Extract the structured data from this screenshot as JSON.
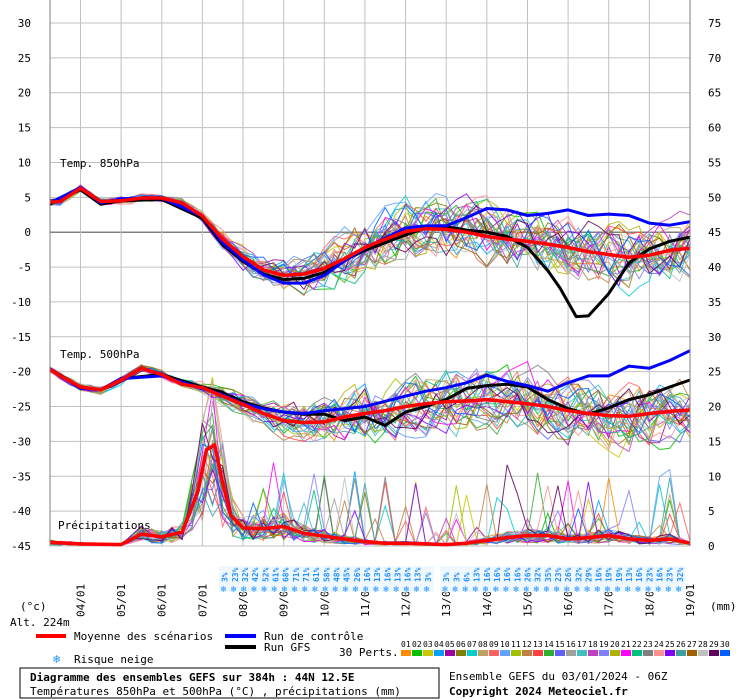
{
  "chart_data": {
    "type": "line",
    "left_axis_ticks": [
      30,
      25,
      20,
      15,
      10,
      5,
      0,
      -5,
      -10,
      -15,
      -20,
      -25,
      -30,
      -35,
      -40,
      -45
    ],
    "right_axis_ticks": [
      75,
      70,
      65,
      60,
      55,
      50,
      45,
      40,
      35,
      30,
      25,
      20,
      15,
      10,
      5,
      0
    ],
    "left_ylim": [
      -45,
      30
    ],
    "right_ylim": [
      0,
      75
    ],
    "left_unit": "(°c)",
    "right_unit": "(mm)",
    "altitude": "Alt. 224m",
    "x_labels": [
      "04/01",
      "05/01",
      "06/01",
      "07/01",
      "08/01",
      "09/01",
      "10/01",
      "11/01",
      "12/01",
      "13/01",
      "14/01",
      "15/01",
      "16/01",
      "17/01",
      "18/01",
      "19/01"
    ],
    "x_domain_days": [
      3.25,
      19
    ],
    "panel_labels": {
      "t850": "Temp. 850hPa",
      "t500": "Temp. 500hPa",
      "precip": "Précipitations"
    },
    "series": [
      {
        "name": "Moyenne des scénarios",
        "color": "#FF0000",
        "role": "t850_mean",
        "x": [
          3.25,
          3.5,
          4,
          4.5,
          5,
          5.5,
          6,
          6.5,
          7,
          7.5,
          8,
          8.5,
          9,
          9.5,
          10,
          10.5,
          11,
          11.5,
          12,
          12.5,
          13,
          13.5,
          14,
          14.5,
          15,
          15.5,
          16,
          16.5,
          17,
          17.5,
          18,
          18.5,
          19
        ],
        "y": [
          4.3,
          4.4,
          6.3,
          4.4,
          4.5,
          4.9,
          4.9,
          4.2,
          2.3,
          -1.0,
          -3.5,
          -5.4,
          -6.2,
          -6.0,
          -5.2,
          -3.8,
          -2.2,
          -1.0,
          0.1,
          0.5,
          0.4,
          0.0,
          -0.6,
          -1.0,
          -1.3,
          -1.7,
          -2.2,
          -2.8,
          -3.2,
          -3.6,
          -3.3,
          -2.6,
          -2.3
        ]
      },
      {
        "name": "Run de contrôle",
        "color": "#0000FF",
        "role": "t850_control",
        "x": [
          3.25,
          4,
          4.5,
          5,
          6,
          7,
          7.5,
          8,
          8.5,
          9,
          9.5,
          10,
          10.5,
          11,
          12,
          12.5,
          13,
          13.5,
          14,
          14.5,
          15,
          15.5,
          16,
          16.5,
          17,
          17.5,
          18,
          18.5,
          19
        ],
        "y": [
          4.2,
          6.4,
          4.2,
          4.8,
          4.9,
          2.3,
          -1.5,
          -4.0,
          -6.1,
          -7.3,
          -7.3,
          -6.2,
          -4.1,
          -2.3,
          0.6,
          0.9,
          0.9,
          2.1,
          3.4,
          3.2,
          2.4,
          2.7,
          3.2,
          2.4,
          2.6,
          2.4,
          1.3,
          1.0,
          1.5
        ]
      },
      {
        "name": "Run GFS",
        "color": "#000000",
        "role": "t850_gfs",
        "x": [
          3.25,
          4,
          4.5,
          5,
          6,
          7,
          7.5,
          8,
          8.5,
          9,
          9.5,
          10,
          10.5,
          11,
          12,
          12.5,
          13,
          13.5,
          14,
          14.5,
          15,
          15.5,
          15.8,
          16.2,
          16.5,
          16.8,
          17,
          17.5,
          18,
          18.5,
          19
        ],
        "y": [
          4.0,
          6.1,
          4.0,
          4.5,
          4.7,
          2.0,
          -1.8,
          -4.2,
          -6.0,
          -6.8,
          -6.6,
          -5.8,
          -4.0,
          -2.6,
          -0.4,
          0.6,
          0.8,
          0.3,
          0.0,
          -0.6,
          -2.2,
          -5.5,
          -8.0,
          -12.1,
          -12.0,
          -10.1,
          -8.8,
          -4.4,
          -2.4,
          -1.3,
          -0.7
        ]
      },
      {
        "name": "Moyenne des scénarios",
        "color": "#FF0000",
        "role": "t500_mean",
        "x": [
          3.25,
          3.5,
          4,
          4.5,
          5,
          5.5,
          6,
          6.5,
          7,
          7.5,
          8,
          8.5,
          9,
          9.5,
          10,
          10.5,
          11,
          11.5,
          12,
          12.5,
          13,
          13.5,
          14,
          14.5,
          15,
          15.5,
          16,
          16.5,
          17,
          17.5,
          18,
          18.5,
          19
        ],
        "y": [
          -19.7,
          -20.6,
          -22.2,
          -22.6,
          -21.2,
          -19.5,
          -20.4,
          -21.8,
          -22.3,
          -23.5,
          -24.7,
          -26.0,
          -27.0,
          -27.3,
          -27.2,
          -26.5,
          -26.0,
          -25.6,
          -25.0,
          -24.6,
          -24.3,
          -24.2,
          -24.0,
          -24.3,
          -24.6,
          -25.0,
          -25.6,
          -26.0,
          -26.3,
          -26.4,
          -26.0,
          -25.7,
          -25.5
        ]
      },
      {
        "name": "Run de contrôle",
        "color": "#0000FF",
        "role": "t500_control",
        "x": [
          3.25,
          4,
          4.5,
          5,
          6,
          7,
          7.5,
          8,
          8.5,
          9,
          9.5,
          10,
          11,
          12,
          12.5,
          13,
          13.5,
          14,
          14.5,
          15,
          15.5,
          16,
          16.5,
          17,
          17.5,
          18,
          18.5,
          19
        ],
        "y": [
          -19.6,
          -22.4,
          -22.6,
          -21.0,
          -20.6,
          -22.4,
          -23.3,
          -24.6,
          -25.3,
          -25.8,
          -26.0,
          -25.6,
          -25.0,
          -23.5,
          -22.8,
          -22.3,
          -21.6,
          -20.5,
          -21.4,
          -22.0,
          -22.8,
          -21.6,
          -20.6,
          -20.6,
          -19.2,
          -19.5,
          -18.4,
          -17.0
        ]
      },
      {
        "name": "Run GFS",
        "color": "#000000",
        "role": "t500_gfs",
        "x": [
          3.25,
          4,
          4.5,
          5,
          6,
          7,
          7.5,
          8,
          8.5,
          9,
          9.5,
          10,
          10.5,
          11,
          11.5,
          12,
          12.5,
          13,
          13.5,
          14,
          14.5,
          15,
          15.5,
          16,
          16.5,
          17,
          17.5,
          18,
          18.5,
          19
        ],
        "y": [
          -19.6,
          -22.3,
          -22.6,
          -21.0,
          -20.4,
          -22.2,
          -23.0,
          -24.3,
          -25.2,
          -25.8,
          -26.1,
          -26.1,
          -27.0,
          -26.5,
          -27.7,
          -25.8,
          -25.0,
          -24.0,
          -22.4,
          -22.0,
          -21.8,
          -22.2,
          -24.0,
          -25.3,
          -26.1,
          -25.2,
          -24.0,
          -23.3,
          -22.2,
          -21.2
        ]
      },
      {
        "name": "Moyenne des scénarios",
        "color": "#FF0000",
        "role": "precip_mean",
        "x": [
          3.25,
          4,
          5,
          5.5,
          6,
          6.5,
          6.9,
          7.1,
          7.3,
          7.5,
          7.7,
          8,
          8.5,
          9,
          9.5,
          10,
          10.5,
          11,
          11.5,
          12,
          12.5,
          13,
          13.5,
          14,
          14.5,
          15,
          15.5,
          16,
          16.5,
          17,
          17.5,
          18,
          18.5,
          19
        ],
        "y": [
          0.5,
          0.3,
          0.2,
          1.7,
          1.3,
          2.0,
          8.0,
          13.8,
          14.5,
          9.0,
          4.4,
          2.6,
          2.5,
          2.8,
          1.8,
          1.4,
          1.0,
          0.6,
          0.4,
          0.4,
          0.3,
          0.2,
          0.4,
          0.8,
          1.2,
          1.5,
          1.5,
          1.0,
          1.2,
          1.5,
          1.0,
          0.8,
          1.0,
          0.4
        ]
      }
    ],
    "snow_risk": [
      {
        "x": [
          7.55,
          7.8,
          8.05,
          8.3,
          8.55,
          8.8,
          9.05,
          9.3,
          9.55,
          9.8,
          10.05,
          10.3,
          10.55,
          10.8,
          11.05,
          11.3,
          11.55,
          11.8,
          12.05,
          12.3,
          12.55
        ],
        "pct": [
          "3%",
          "23%",
          "32%",
          "42%",
          "52%",
          "61%",
          "68%",
          "71%",
          "71%",
          "61%",
          "58%",
          "48%",
          "45%",
          "26%",
          "16%",
          "13%",
          "16%",
          "13%",
          "16%",
          "13%",
          "3%"
        ]
      },
      {
        "x": [
          13.0,
          13.25,
          13.5,
          13.75,
          14.0,
          14.25,
          14.5,
          14.75,
          15.0,
          15.25,
          15.5,
          15.75,
          16.0,
          16.25,
          16.5,
          16.75,
          17.0,
          17.25,
          17.5,
          17.75,
          18.0,
          18.25,
          18.5,
          18.75
        ],
        "pct": [
          "3%",
          "3%",
          "6%",
          "13%",
          "16%",
          "16%",
          "16%",
          "16%",
          "26%",
          "32%",
          "35%",
          "23%",
          "26%",
          "32%",
          "29%",
          "16%",
          "19%",
          "19%",
          "13%",
          "16%",
          "23%",
          "16%",
          "23%",
          "32%"
        ]
      }
    ],
    "ensemble_count": "30 Perts.",
    "member_ids": [
      "01",
      "02",
      "03",
      "04",
      "05",
      "06",
      "07",
      "08",
      "09",
      "10",
      "11",
      "12",
      "13",
      "14",
      "15",
      "16",
      "17",
      "18",
      "19",
      "20",
      "21",
      "22",
      "23",
      "24",
      "25",
      "26",
      "27",
      "28",
      "29",
      "30"
    ],
    "member_colors": [
      "#FF8C00",
      "#00C000",
      "#C8C800",
      "#00A0FF",
      "#A000A0",
      "#808000",
      "#00CCCC",
      "#C0A060",
      "#FF6060",
      "#60A0FF",
      "#A0C000",
      "#C08040",
      "#FF4040",
      "#30B030",
      "#6060FF",
      "#A0A0A0",
      "#40C0C0",
      "#C040C0",
      "#8080FF",
      "#B0B000",
      "#FF00FF",
      "#00C080",
      "#808080",
      "#FF9090",
      "#8000FF",
      "#40A0A0",
      "#A06000",
      "#C0C0C0",
      "#600060",
      "#0060FF"
    ],
    "legend": {
      "mean": "Moyenne des scénarios",
      "control": "Run de contrôle",
      "gfs": "Run GFS",
      "snow": "Risque neige"
    },
    "footer": {
      "title": "Diagramme des ensembles GEFS sur 384h : 44N 12.5E",
      "subtitle": "Températures 850hPa et 500hPa (°C) , précipitations (mm)",
      "run": "Ensemble GEFS du 03/01/2024 - 06Z",
      "copyright": "Copyright 2024 Meteociel.fr"
    }
  }
}
